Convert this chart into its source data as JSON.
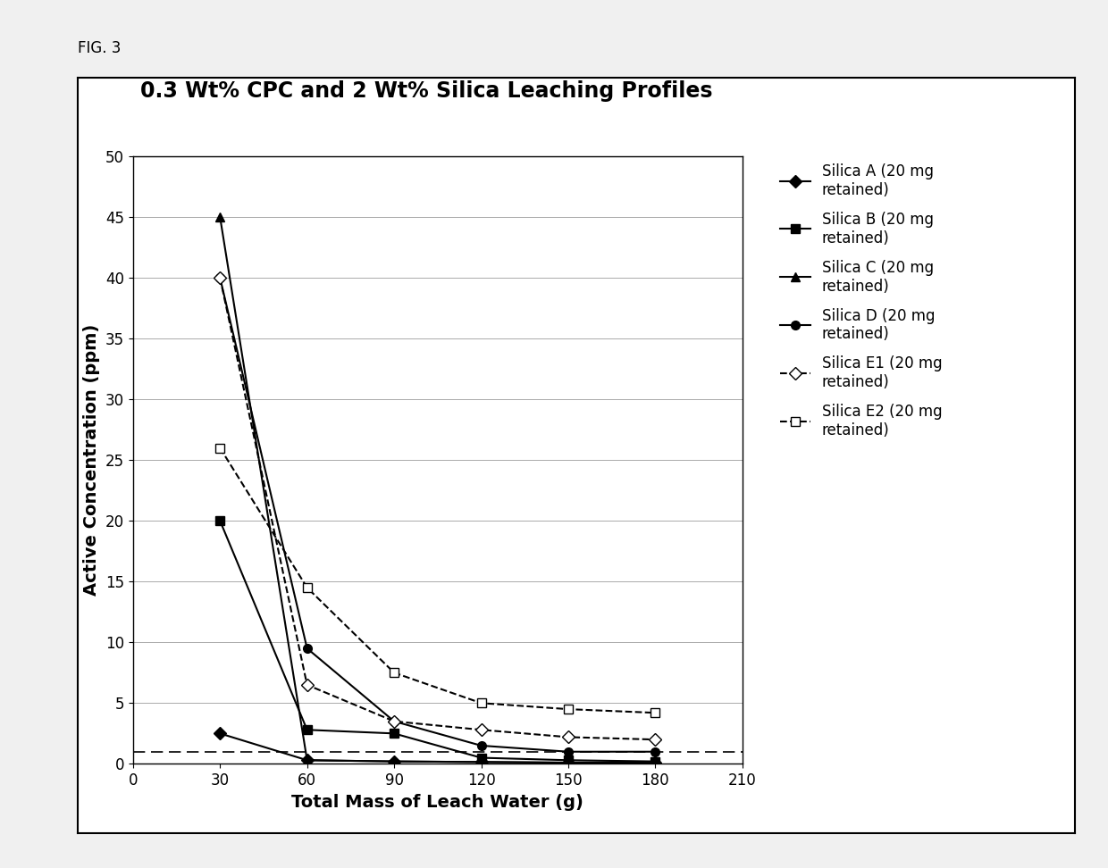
{
  "title": "0.3 Wt% CPC and 2 Wt% Silica Leaching Profiles",
  "xlabel": "Total Mass of Leach Water (g)",
  "ylabel": "Active Concentration (ppm)",
  "xlim": [
    0,
    210
  ],
  "ylim": [
    0,
    50
  ],
  "xticks": [
    0,
    30,
    60,
    90,
    120,
    150,
    180,
    210
  ],
  "yticks": [
    0,
    5,
    10,
    15,
    20,
    25,
    30,
    35,
    40,
    45,
    50
  ],
  "dashed_line_y": 1.0,
  "series": [
    {
      "label": "Silica A (20 mg\nretained)",
      "x": [
        30,
        60,
        90,
        120,
        150,
        180
      ],
      "y": [
        2.5,
        0.3,
        0.2,
        0.15,
        0.1,
        0.1
      ],
      "linestyle": "-",
      "marker": "D",
      "markersize": 7,
      "markerfacecolor": "black",
      "markeredgecolor": "black",
      "color": "black",
      "linewidth": 1.5
    },
    {
      "label": "Silica B (20 mg\nretained)",
      "x": [
        30,
        60,
        90,
        120,
        150,
        180
      ],
      "y": [
        20.0,
        2.8,
        2.5,
        0.5,
        0.3,
        0.2
      ],
      "linestyle": "-",
      "marker": "s",
      "markersize": 7,
      "markerfacecolor": "black",
      "markeredgecolor": "black",
      "color": "black",
      "linewidth": 1.5
    },
    {
      "label": "Silica C (20 mg\nretained)",
      "x": [
        30,
        60,
        90,
        120,
        150,
        180
      ],
      "y": [
        45.0,
        0.3,
        0.2,
        0.15,
        0.1,
        0.1
      ],
      "linestyle": "-",
      "marker": "^",
      "markersize": 7,
      "markerfacecolor": "black",
      "markeredgecolor": "black",
      "color": "black",
      "linewidth": 1.5
    },
    {
      "label": "Silica D (20 mg\nretained)",
      "x": [
        30,
        60,
        90,
        120,
        150,
        180
      ],
      "y": [
        40.0,
        9.5,
        3.5,
        1.5,
        1.0,
        1.0
      ],
      "linestyle": "-",
      "marker": "o",
      "markersize": 7,
      "markerfacecolor": "black",
      "markeredgecolor": "black",
      "color": "black",
      "linewidth": 1.5
    },
    {
      "label": "Silica E1 (20 mg\nretained)",
      "x": [
        30,
        60,
        90,
        120,
        150,
        180
      ],
      "y": [
        40.0,
        6.5,
        3.5,
        2.8,
        2.2,
        2.0
      ],
      "linestyle": "--",
      "marker": "D",
      "markersize": 7,
      "markerfacecolor": "white",
      "markeredgecolor": "black",
      "color": "black",
      "linewidth": 1.5
    },
    {
      "label": "Silica E2 (20 mg\nretained)",
      "x": [
        30,
        60,
        90,
        120,
        150,
        180
      ],
      "y": [
        26.0,
        14.5,
        7.5,
        5.0,
        4.5,
        4.2
      ],
      "linestyle": "--",
      "marker": "s",
      "markersize": 7,
      "markerfacecolor": "white",
      "markeredgecolor": "black",
      "color": "black",
      "linewidth": 1.5
    }
  ],
  "fig_label": "FIG. 3",
  "background_color": "#f0f0f0",
  "plot_bg_color": "#ffffff",
  "outer_box_bg": "#ffffff",
  "grid_color": "#aaaaaa",
  "title_fontsize": 17,
  "axis_label_fontsize": 14,
  "tick_fontsize": 12,
  "legend_fontsize": 12
}
